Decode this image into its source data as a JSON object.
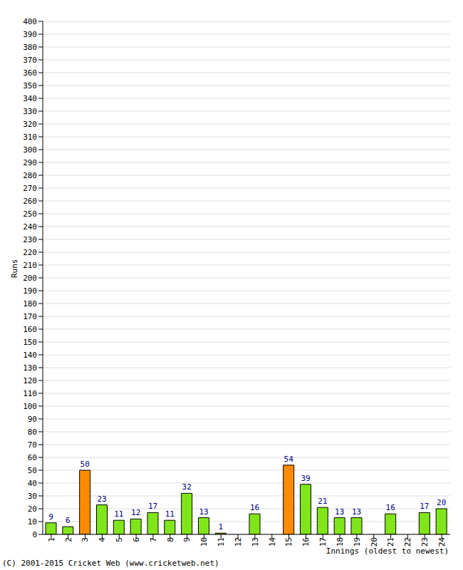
{
  "chart_data": {
    "type": "bar",
    "x_label": "Innings (oldest to newest)",
    "y_label": "Runs",
    "annotations": [
      "(C) 2001-2015 Cricket Web (www.cricketweb.net)"
    ],
    "categories": [
      "1",
      "2",
      "3",
      "4",
      "5",
      "6",
      "7",
      "8",
      "9",
      "10",
      "11",
      "12",
      "13",
      "14",
      "15",
      "16",
      "17",
      "18",
      "19",
      "20",
      "21",
      "22",
      "23",
      "24"
    ],
    "values": [
      9,
      6,
      50,
      23,
      11,
      12,
      17,
      11,
      32,
      13,
      1,
      0,
      16,
      0,
      54,
      39,
      21,
      13,
      13,
      0,
      16,
      0,
      17,
      20
    ],
    "colors": [
      "#80e619",
      "#80e619",
      "#ff8c00",
      "#80e619",
      "#80e619",
      "#80e619",
      "#80e619",
      "#80e619",
      "#80e619",
      "#80e619",
      "#80e619",
      "#80e619",
      "#80e619",
      "#80e619",
      "#ff8c00",
      "#80e619",
      "#80e619",
      "#80e619",
      "#80e619",
      "#80e619",
      "#80e619",
      "#80e619",
      "#80e619",
      "#80e619"
    ],
    "ylim": [
      0,
      400
    ],
    "yticks": [
      0,
      10,
      20,
      30,
      40,
      50,
      60,
      70,
      80,
      90,
      100,
      110,
      120,
      130,
      140,
      150,
      160,
      170,
      180,
      190,
      200,
      210,
      220,
      230,
      240,
      250,
      260,
      270,
      280,
      290,
      300,
      310,
      320,
      330,
      340,
      350,
      360,
      370,
      380,
      390,
      400
    ],
    "grid": true,
    "data_labels": true
  }
}
